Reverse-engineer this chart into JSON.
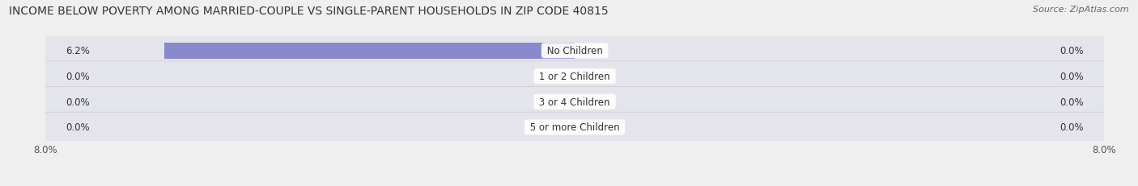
{
  "title": "INCOME BELOW POVERTY AMONG MARRIED-COUPLE VS SINGLE-PARENT HOUSEHOLDS IN ZIP CODE 40815",
  "source": "Source: ZipAtlas.com",
  "categories": [
    "No Children",
    "1 or 2 Children",
    "3 or 4 Children",
    "5 or more Children"
  ],
  "married_values": [
    6.2,
    0.0,
    0.0,
    0.0
  ],
  "single_values": [
    0.0,
    0.0,
    0.0,
    0.0
  ],
  "married_color": "#8888cc",
  "single_color": "#e8c898",
  "axis_min": -8.0,
  "axis_max": 8.0,
  "bg_color": "#efefef",
  "row_bg_color": "#e4e4ec",
  "title_fontsize": 10.0,
  "source_fontsize": 8.0,
  "label_fontsize": 8.5,
  "category_fontsize": 8.5,
  "legend_fontsize": 8.5,
  "axis_label_fontsize": 8.5,
  "title_color": "#333333",
  "source_color": "#666666",
  "text_color": "#333333",
  "axis_label_color": "#555555",
  "row_sep_color": "#cccccc"
}
